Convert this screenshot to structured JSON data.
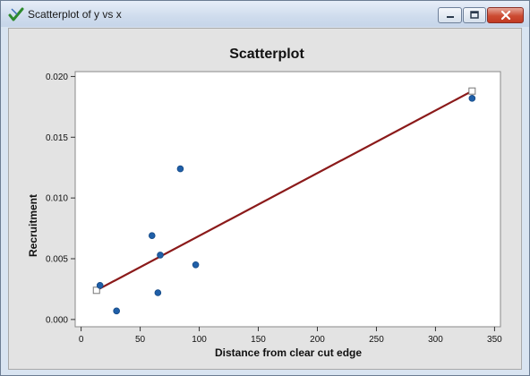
{
  "window": {
    "title": "Scatterplot of y vs x",
    "icon": "minitab-check-icon"
  },
  "controls": {
    "minimize_icon": "minimize-icon",
    "maximize_icon": "maximize-icon",
    "close_icon": "close-icon"
  },
  "chart_data": {
    "type": "scatter",
    "title": "Scatterplot",
    "xlabel": "Distance from clear cut edge",
    "ylabel": "Recruitment",
    "xlim": [
      -5,
      355
    ],
    "ylim": [
      -0.0006,
      0.0204
    ],
    "x_ticks": [
      0,
      50,
      100,
      150,
      200,
      250,
      300,
      350
    ],
    "x_tick_labels": [
      "0",
      "50",
      "100",
      "150",
      "200",
      "250",
      "300",
      "350"
    ],
    "y_ticks": [
      0.0,
      0.005,
      0.01,
      0.015,
      0.02
    ],
    "y_tick_labels": [
      "0.000",
      "0.005",
      "0.010",
      "0.015",
      "0.020"
    ],
    "grid": false,
    "points": [
      {
        "x": 16,
        "y": 0.0028
      },
      {
        "x": 30,
        "y": 0.0007
      },
      {
        "x": 60,
        "y": 0.0069
      },
      {
        "x": 65,
        "y": 0.0022
      },
      {
        "x": 67,
        "y": 0.0053
      },
      {
        "x": 84,
        "y": 0.0124
      },
      {
        "x": 97,
        "y": 0.0045
      },
      {
        "x": 331,
        "y": 0.0182
      }
    ],
    "fit_line": {
      "x": [
        13,
        331
      ],
      "y": [
        0.0024,
        0.0188
      ]
    },
    "fit_endpoint_markers": [
      {
        "x": 13,
        "y": 0.0024
      },
      {
        "x": 331,
        "y": 0.0188
      }
    ],
    "colors": {
      "point": "#1f5fa8",
      "line": "#8b1a1a",
      "plot_bg": "#ffffff",
      "frame_bg": "#e3e3e3"
    }
  }
}
